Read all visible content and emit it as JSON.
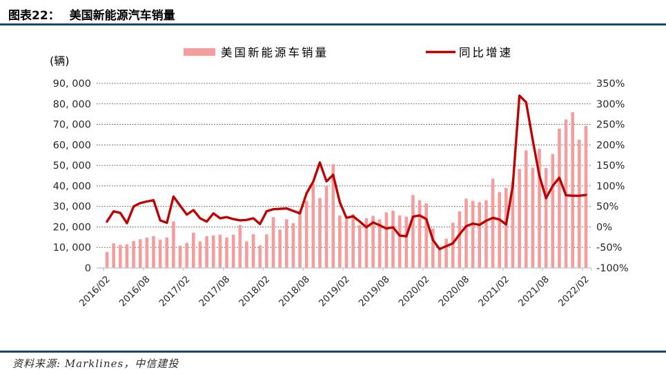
{
  "header": {
    "label": "图表22：",
    "title": "美国新能源汽车销量"
  },
  "footer": {
    "source": "资料来源: Marklines，中信建投"
  },
  "chart_data": {
    "type": "bar",
    "title": "美国新能源汽车销量",
    "unit_label": "(辆)",
    "legend": [
      {
        "label": "美国新能源车销量",
        "type": "bar"
      },
      {
        "label": "同比增速",
        "type": "line"
      }
    ],
    "legend_position": "top",
    "grid": "horizontal-dotted",
    "categories": [
      "2016/02",
      "2016/03",
      "2016/04",
      "2016/05",
      "2016/06",
      "2016/07",
      "2016/08",
      "2016/09",
      "2016/10",
      "2016/11",
      "2016/12",
      "2017/01",
      "2017/02",
      "2017/03",
      "2017/04",
      "2017/05",
      "2017/06",
      "2017/07",
      "2017/08",
      "2017/09",
      "2017/10",
      "2017/11",
      "2017/12",
      "2018/01",
      "2018/02",
      "2018/03",
      "2018/04",
      "2018/05",
      "2018/06",
      "2018/07",
      "2018/08",
      "2018/09",
      "2018/10",
      "2018/11",
      "2018/12",
      "2019/01",
      "2019/02",
      "2019/03",
      "2019/04",
      "2019/05",
      "2019/06",
      "2019/07",
      "2019/08",
      "2019/09",
      "2019/10",
      "2019/11",
      "2019/12",
      "2020/01",
      "2020/02",
      "2020/03",
      "2020/04",
      "2020/05",
      "2020/06",
      "2020/07",
      "2020/08",
      "2020/09",
      "2020/10",
      "2020/11",
      "2020/12",
      "2021/01",
      "2021/02",
      "2021/03",
      "2021/04",
      "2021/05",
      "2021/06",
      "2021/07",
      "2021/08",
      "2021/09",
      "2021/10",
      "2021/11",
      "2021/12",
      "2022/01",
      "2022/02"
    ],
    "x_tick_labels": [
      "2016/02",
      "2016/08",
      "2017/02",
      "2017/08",
      "2018/02",
      "2018/08",
      "2019/02",
      "2019/08",
      "2020/02",
      "2020/08",
      "2021/02",
      "2021/08",
      "2022/02"
    ],
    "x_tick_every": 6,
    "series": [
      {
        "name": "美国新能源车销量",
        "axis": "left",
        "unit": "辆",
        "values": [
          7800,
          12000,
          11200,
          11500,
          13100,
          14000,
          14800,
          15500,
          13700,
          14800,
          22700,
          10800,
          12200,
          17200,
          12900,
          15500,
          15900,
          16200,
          14800,
          16200,
          20900,
          12900,
          16400,
          11000,
          16400,
          24800,
          18700,
          23700,
          21800,
          27900,
          32700,
          41000,
          34100,
          39900,
          50600,
          25600,
          23700,
          26200,
          20900,
          24300,
          25400,
          23700,
          27100,
          27900,
          25600,
          25000,
          35500,
          33000,
          31500,
          19200,
          9700,
          14200,
          22000,
          27600,
          33800,
          32700,
          32100,
          33000,
          43500,
          37000,
          39000,
          42200,
          48300,
          57300,
          48900,
          58100,
          48700,
          55600,
          67900,
          72400,
          75900,
          62500,
          69200
        ]
      },
      {
        "name": "同比增速",
        "axis": "right",
        "unit": "%",
        "values": [
          13,
          38,
          34,
          9,
          50,
          58,
          62,
          65,
          16,
          10,
          74,
          52,
          30,
          41,
          21,
          13,
          33,
          21,
          24,
          19,
          16,
          17,
          21,
          7,
          38,
          43,
          44,
          45,
          39,
          33,
          82,
          110,
          157,
          111,
          127,
          60,
          22,
          26,
          13,
          -1,
          11,
          4,
          -4,
          -1,
          -21,
          -23,
          25,
          28,
          19,
          -32,
          -54,
          -47,
          -40,
          -18,
          2,
          8,
          5,
          15,
          22,
          18,
          6,
          100,
          320,
          304,
          212,
          125,
          70,
          100,
          120,
          77,
          76,
          76,
          78
        ]
      }
    ],
    "left_axis": {
      "min": 0,
      "max": 90000,
      "step": 10000,
      "tick_labels": [
        "0",
        "10, 000",
        "20, 000",
        "30, 000",
        "40, 000",
        "50, 000",
        "60, 000",
        "70, 000",
        "80, 000",
        "90, 000"
      ]
    },
    "right_axis": {
      "min": -100,
      "max": 350,
      "step": 50,
      "tick_labels": [
        "-100%",
        "-50%",
        "0%",
        "50%",
        "100%",
        "150%",
        "200%",
        "250%",
        "300%",
        "350%"
      ]
    },
    "colors": {
      "bar": "#F59C9C",
      "line": "#C00000",
      "grid": "#4a4a4a",
      "axis_text": "#262626",
      "baseline": "#BFBFBF",
      "rule": "#17456e"
    }
  }
}
